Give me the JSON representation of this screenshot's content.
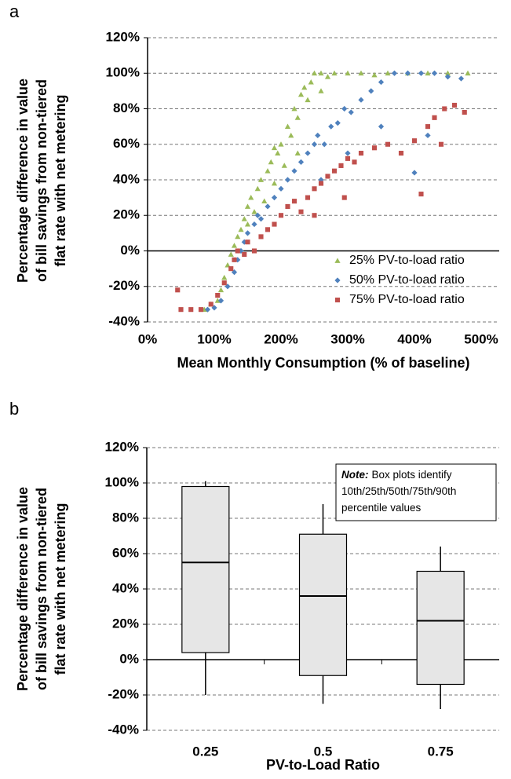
{
  "chart_data": [
    {
      "type": "scatter",
      "panel": "a",
      "ylabel": [
        "Percentage difference in value",
        "of bill savings from non-tiered",
        "flat rate with net metering"
      ],
      "xlabel": "Mean Monthly Consumption (% of baseline)",
      "xlim": [
        0,
        500
      ],
      "xticks": [
        {
          "value": 0,
          "label": "0%"
        },
        {
          "value": 100,
          "label": "100%"
        },
        {
          "value": 200,
          "label": "200%"
        },
        {
          "value": 300,
          "label": "300%"
        },
        {
          "value": 400,
          "label": "400%"
        },
        {
          "value": 500,
          "label": "500%"
        }
      ],
      "ylim": [
        -40,
        120
      ],
      "yticks": [
        {
          "value": -40,
          "label": "-40%"
        },
        {
          "value": -20,
          "label": "-20%"
        },
        {
          "value": 0,
          "label": "0%"
        },
        {
          "value": 20,
          "label": "20%"
        },
        {
          "value": 40,
          "label": "40%"
        },
        {
          "value": 60,
          "label": "60%"
        },
        {
          "value": 80,
          "label": "80%"
        },
        {
          "value": 100,
          "label": "100%"
        },
        {
          "value": 120,
          "label": "120%"
        }
      ],
      "grid": true,
      "legend": "lower right",
      "series": [
        {
          "name": "25% PV-to-load ratio",
          "color": "#9bbb59",
          "marker": "triangle",
          "x": [
            85,
            95,
            105,
            110,
            115,
            120,
            125,
            130,
            135,
            140,
            145,
            150,
            150,
            155,
            160,
            165,
            170,
            175,
            180,
            185,
            190,
            195,
            200,
            205,
            210,
            215,
            220,
            225,
            230,
            235,
            240,
            245,
            250,
            260,
            270,
            280,
            300,
            320,
            340,
            360,
            390,
            420,
            450,
            480,
            190,
            225,
            260
          ],
          "values": [
            -33,
            -30,
            -28,
            -22,
            -15,
            -8,
            -2,
            3,
            8,
            12,
            18,
            25,
            15,
            30,
            22,
            35,
            40,
            28,
            45,
            50,
            38,
            55,
            60,
            48,
            70,
            65,
            80,
            75,
            88,
            92,
            85,
            95,
            100,
            100,
            98,
            100,
            100,
            100,
            99,
            100,
            100,
            100,
            100,
            100,
            58,
            55,
            90
          ]
        },
        {
          "name": "50% PV-to-load ratio",
          "color": "#4f81bd",
          "marker": "diamond",
          "x": [
            90,
            100,
            110,
            120,
            130,
            135,
            140,
            145,
            150,
            160,
            165,
            170,
            180,
            190,
            200,
            210,
            220,
            230,
            240,
            250,
            255,
            265,
            275,
            285,
            295,
            305,
            320,
            335,
            350,
            370,
            390,
            410,
            430,
            450,
            470,
            400,
            350,
            300,
            260,
            420
          ],
          "values": [
            -33,
            -32,
            -28,
            -20,
            -12,
            -5,
            0,
            5,
            10,
            15,
            20,
            18,
            25,
            30,
            35,
            40,
            45,
            50,
            55,
            60,
            65,
            60,
            70,
            72,
            80,
            78,
            85,
            90,
            95,
            100,
            100,
            100,
            100,
            98,
            97,
            44,
            70,
            55,
            40,
            65
          ]
        },
        {
          "name": "75% PV-to-load ratio",
          "color": "#c0504d",
          "marker": "square",
          "x": [
            45,
            50,
            65,
            80,
            95,
            105,
            115,
            125,
            130,
            135,
            145,
            150,
            160,
            170,
            180,
            190,
            200,
            210,
            220,
            230,
            240,
            250,
            260,
            270,
            280,
            290,
            300,
            310,
            320,
            340,
            360,
            380,
            400,
            420,
            430,
            445,
            460,
            475,
            410,
            440,
            250,
            295
          ],
          "values": [
            -22,
            -33,
            -33,
            -33,
            -30,
            -25,
            -18,
            -10,
            -5,
            0,
            -2,
            5,
            0,
            8,
            12,
            15,
            20,
            25,
            28,
            22,
            30,
            35,
            38,
            42,
            45,
            48,
            52,
            50,
            55,
            58,
            60,
            55,
            62,
            70,
            75,
            80,
            82,
            78,
            32,
            60,
            20,
            30
          ]
        }
      ]
    },
    {
      "type": "box",
      "panel": "b",
      "ylabel": [
        "Percentage difference in value",
        "of bill savings from non-tiered",
        "flat rate with net metering"
      ],
      "xlabel": "PV-to-Load Ratio",
      "categories": [
        "0.25",
        "0.5",
        "0.75"
      ],
      "p10": [
        -20,
        -25,
        -28
      ],
      "p25": [
        4,
        -9,
        -14
      ],
      "p50": [
        55,
        36,
        22
      ],
      "p75": [
        98,
        71,
        50
      ],
      "p90": [
        101,
        88,
        64
      ],
      "color": "#e6e6e6",
      "ylim": [
        -40,
        120
      ],
      "yticks": [
        {
          "value": -40,
          "label": "-40%"
        },
        {
          "value": -20,
          "label": "-20%"
        },
        {
          "value": 0,
          "label": "0%"
        },
        {
          "value": 20,
          "label": "20%"
        },
        {
          "value": 40,
          "label": "40%"
        },
        {
          "value": 60,
          "label": "60%"
        },
        {
          "value": 80,
          "label": "80%"
        },
        {
          "value": 100,
          "label": "100%"
        },
        {
          "value": 120,
          "label": "120%"
        }
      ],
      "grid": true,
      "note": {
        "label": "Note:",
        "lines": [
          "Box plots identify",
          "10th/25th/50th/75th/90th",
          "percentile values"
        ]
      }
    }
  ]
}
